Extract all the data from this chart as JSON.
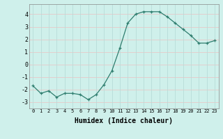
{
  "x": [
    0,
    1,
    2,
    3,
    4,
    5,
    6,
    7,
    8,
    9,
    10,
    11,
    12,
    13,
    14,
    15,
    16,
    17,
    18,
    19,
    20,
    21,
    22,
    23
  ],
  "y": [
    -1.7,
    -2.3,
    -2.1,
    -2.6,
    -2.3,
    -2.3,
    -2.4,
    -2.8,
    -2.4,
    -1.6,
    -0.5,
    1.3,
    3.3,
    4.0,
    4.2,
    4.2,
    4.2,
    3.8,
    3.3,
    2.8,
    2.3,
    1.7,
    1.7,
    1.9
  ],
  "xlabel": "Humidex (Indice chaleur)",
  "xlim": [
    -0.5,
    23.5
  ],
  "ylim": [
    -3.5,
    4.8
  ],
  "yticks": [
    -3,
    -2,
    -1,
    0,
    1,
    2,
    3,
    4
  ],
  "xticks": [
    0,
    1,
    2,
    3,
    4,
    5,
    6,
    7,
    8,
    9,
    10,
    11,
    12,
    13,
    14,
    15,
    16,
    17,
    18,
    19,
    20,
    21,
    22,
    23
  ],
  "line_color": "#2e7d6e",
  "bg_color": "#cff0eb",
  "grid_color_h": "#e8c8c8",
  "grid_color_v": "#b8dcd8",
  "marker": "+"
}
